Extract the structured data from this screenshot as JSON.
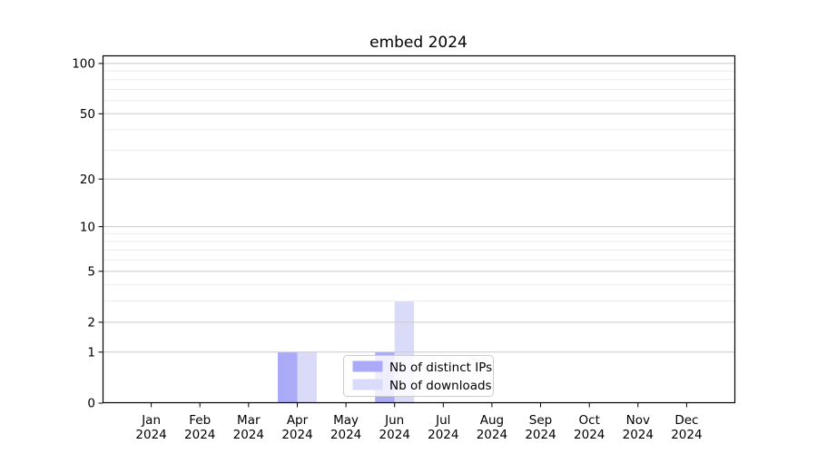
{
  "chart_data": {
    "type": "bar",
    "title": "embed 2024",
    "x": {
      "categories": [
        "Jan",
        "Feb",
        "Mar",
        "Apr",
        "May",
        "Jun",
        "Jul",
        "Aug",
        "Sep",
        "Oct",
        "Nov",
        "Dec"
      ],
      "year_label": "2024"
    },
    "y": {
      "scale": "log1p",
      "major_ticks": [
        0,
        1,
        2,
        5,
        10,
        20,
        50,
        100
      ],
      "minor_gridlines": [
        3,
        4,
        6,
        7,
        8,
        9,
        30,
        40,
        60,
        70,
        80,
        90
      ],
      "ylim": [
        0,
        113
      ]
    },
    "series": [
      {
        "name": "Nb of distinct IPs",
        "color": "#aaaaf7",
        "values": [
          0,
          0,
          0,
          1,
          0,
          1,
          0,
          0,
          0,
          0,
          0,
          0
        ]
      },
      {
        "name": "Nb of downloads",
        "color": "#dadaf9",
        "values": [
          0,
          0,
          0,
          1,
          0,
          3,
          0,
          0,
          0,
          0,
          0,
          0
        ]
      }
    ],
    "legend": {
      "entries": [
        "Nb of distinct IPs",
        "Nb of downloads"
      ],
      "position": "lower center",
      "background": "rgba(255,255,255,0.8)",
      "border_color": "#cccccc"
    },
    "colors": {
      "spine": "#000000",
      "grid_major": "#c9c9c9",
      "grid_minor": "#ececec",
      "background": "#ffffff"
    }
  }
}
